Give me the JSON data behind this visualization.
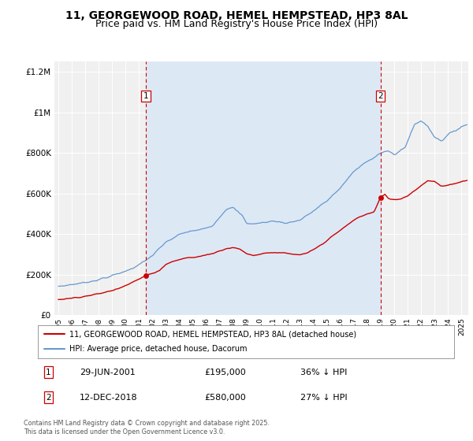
{
  "title": "11, GEORGEWOOD ROAD, HEMEL HEMPSTEAD, HP3 8AL",
  "subtitle": "Price paid vs. HM Land Registry's House Price Index (HPI)",
  "legend_line1": "11, GEORGEWOOD ROAD, HEMEL HEMPSTEAD, HP3 8AL (detached house)",
  "legend_line2": "HPI: Average price, detached house, Dacorum",
  "sale1_label": "1",
  "sale1_date": "29-JUN-2001",
  "sale1_price": "£195,000",
  "sale1_hpi": "36% ↓ HPI",
  "sale1_year": 2001.5,
  "sale1_value": 195000,
  "sale2_label": "2",
  "sale2_date": "12-DEC-2018",
  "sale2_price": "£580,000",
  "sale2_hpi": "27% ↓ HPI",
  "sale2_year": 2018.96,
  "sale2_value": 580000,
  "red_color": "#cc0000",
  "blue_color": "#6699cc",
  "shade_color": "#dde8f5",
  "background_color": "#f0f0f0",
  "grid_color": "#ffffff",
  "ylim": [
    0,
    1250000
  ],
  "xlim_start": 1994.7,
  "xlim_end": 2025.5,
  "footnote": "Contains HM Land Registry data © Crown copyright and database right 2025.\nThis data is licensed under the Open Government Licence v3.0.",
  "title_fontsize": 10,
  "subtitle_fontsize": 9
}
